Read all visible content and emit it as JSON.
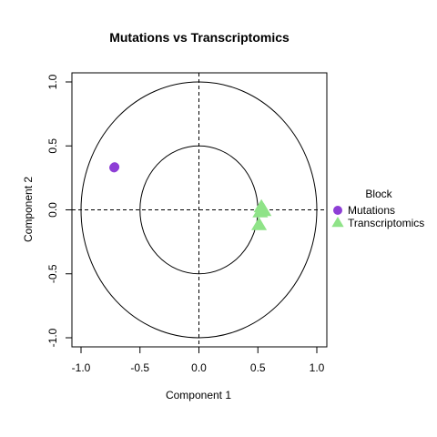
{
  "chart_data": {
    "type": "scatter",
    "title": "Mutations vs Transcriptomics",
    "xlabel": "Component 1",
    "ylabel": "Component 2",
    "xlim": [
      -1.0,
      1.0
    ],
    "ylim": [
      -1.0,
      1.0
    ],
    "x_ticks": [
      "-1.0",
      "-0.5",
      "0.0",
      "0.5",
      "1.0"
    ],
    "y_ticks": [
      "-1.0",
      "-0.5",
      "0.0",
      "0.5",
      "1.0"
    ],
    "circles": [
      1.0,
      0.5
    ],
    "reference_lines": {
      "x": 0,
      "y": 0,
      "style": "dashed"
    },
    "legend": {
      "title": "Block",
      "placement": "right"
    },
    "series": [
      {
        "name": "Mutations",
        "marker": "circle",
        "color": "#8e3fd6",
        "points": [
          {
            "x": -0.72,
            "y": 0.33
          },
          {
            "x": -0.715,
            "y": 0.335
          }
        ]
      },
      {
        "name": "Transcriptomics",
        "marker": "triangle",
        "color": "#8fe388",
        "points": [
          {
            "x": 0.52,
            "y": -0.02
          },
          {
            "x": 0.55,
            "y": -0.01
          },
          {
            "x": 0.53,
            "y": 0.02
          },
          {
            "x": 0.54,
            "y": 0.0
          },
          {
            "x": 0.51,
            "y": -0.12
          }
        ]
      }
    ]
  }
}
